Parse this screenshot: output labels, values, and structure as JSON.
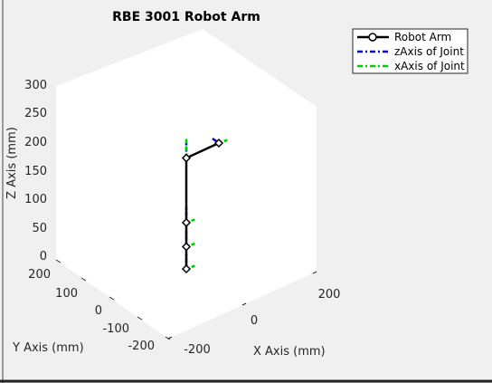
{
  "chart_data": {
    "type": "line",
    "title": "RBE 3001 Robot Arm",
    "xlabel": "X Axis (mm)",
    "ylabel": "Y Axis (mm)",
    "zlabel": "Z Axis (mm)",
    "x_ticks": [
      "-200",
      "0",
      "200"
    ],
    "y_ticks": [
      "200",
      "100",
      "0",
      "-100",
      "-200"
    ],
    "z_ticks": [
      "0",
      "50",
      "100",
      "150",
      "200",
      "250",
      "300"
    ],
    "legend": [
      "Robot Arm",
      "zAxis of Joint",
      "xAxis of Joint"
    ],
    "legend_placement": "top-right",
    "colors": {
      "arm": "#000000",
      "z_axis": "#0000cc",
      "x_axis": "#00cc00",
      "background": "#f0f0f0"
    },
    "arm_joints_z": [
      0,
      35,
      73,
      175,
      175
    ]
  }
}
